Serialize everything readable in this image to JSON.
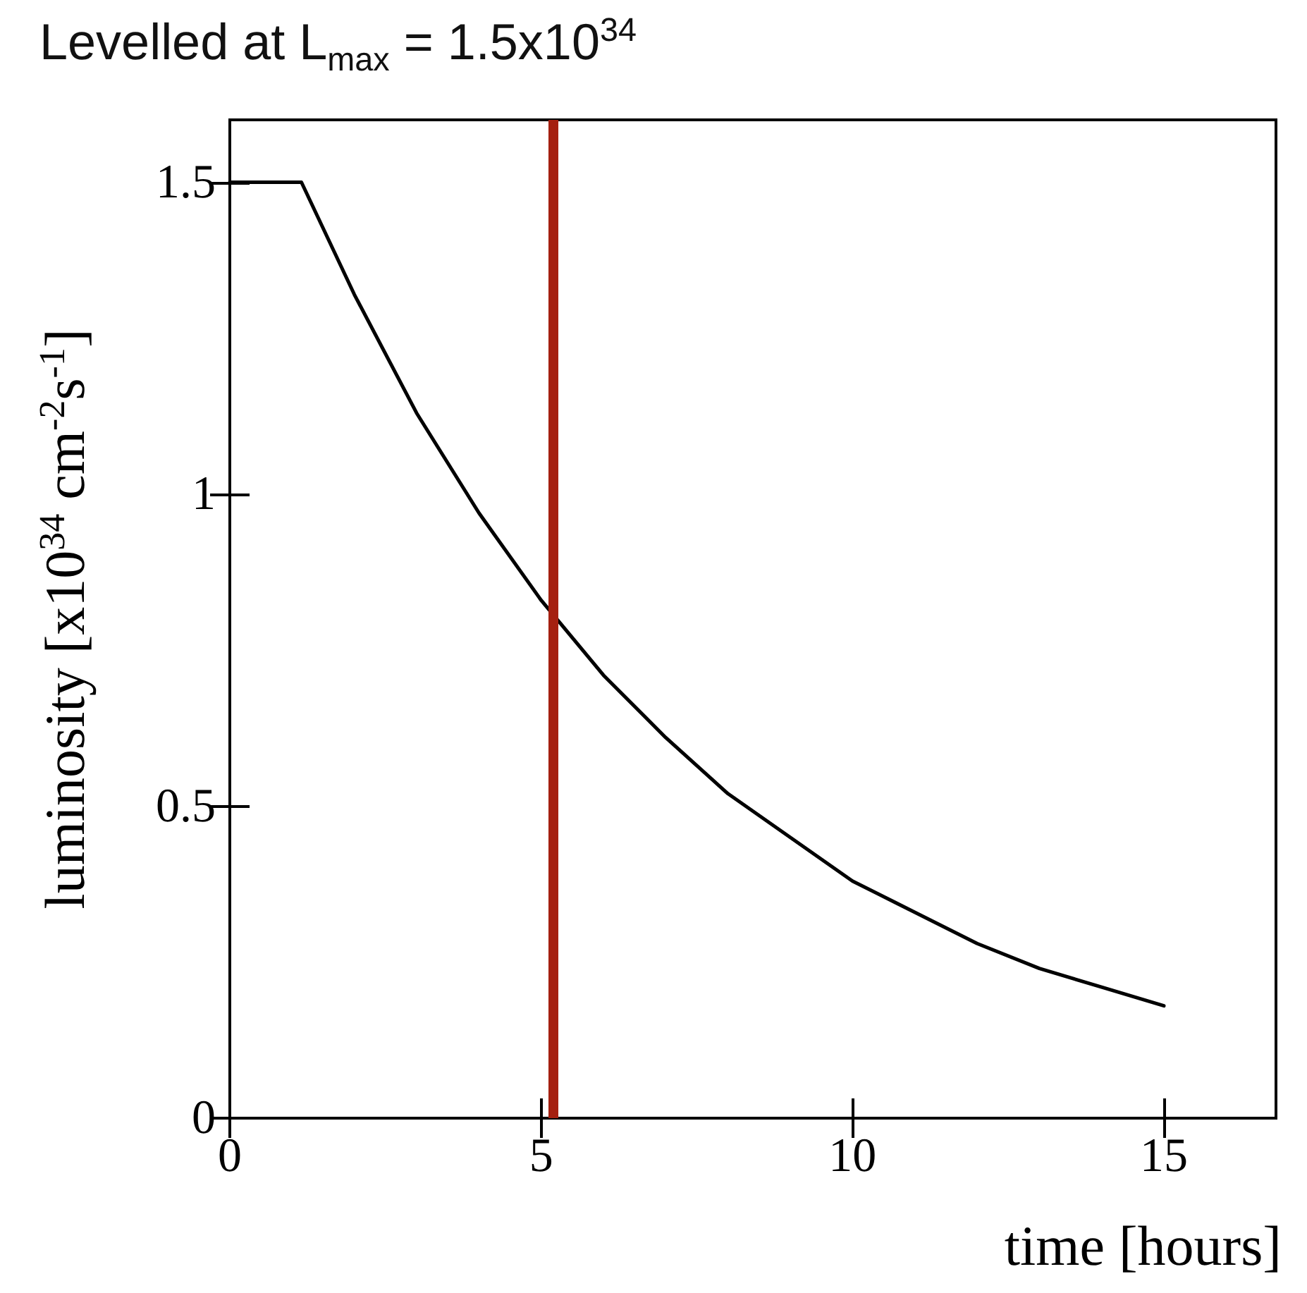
{
  "chart_data": {
    "type": "line",
    "title": "Levelled at L$_{max}$ = 1.5x10$^{34}$",
    "xlabel": "time [hours]",
    "ylabel": "luminosity [x10$^{34}$ cm$^{-2}$s$^{-1}$]",
    "series": [
      {
        "color": "#000000",
        "x": [
          0,
          1.15,
          2,
          3,
          4,
          5,
          6,
          7,
          8,
          9,
          10,
          11,
          12,
          13,
          14,
          15
        ],
        "values": [
          1.5,
          1.5,
          1.32,
          1.13,
          0.97,
          0.83,
          0.71,
          0.61,
          0.52,
          0.45,
          0.38,
          0.33,
          0.28,
          0.24,
          0.21,
          0.18
        ]
      }
    ],
    "ref_lines": [
      {
        "axis": "x",
        "value": 5.2,
        "color": "#a52010"
      }
    ],
    "xlim": [
      0,
      16.8
    ],
    "xticks": [
      0,
      5,
      10,
      15
    ],
    "ylim": [
      0,
      1.6
    ],
    "yticks": [
      0,
      0.5,
      1,
      1.5
    ],
    "grid": false,
    "marker": "none",
    "line_style": "solid"
  }
}
